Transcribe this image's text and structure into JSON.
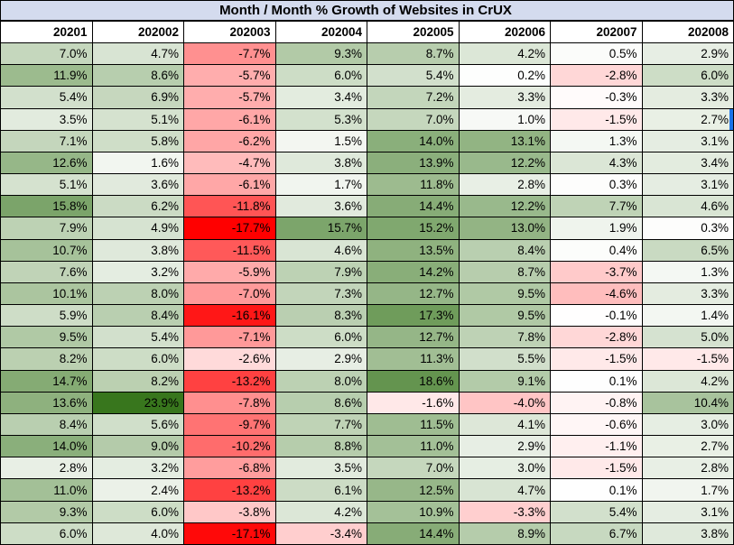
{
  "title": "Month / Month % Growth of Websites in CrUX",
  "colors": {
    "title_bg": "#d4dbee",
    "grid_border": "#000000",
    "header_bg": "#ffffff",
    "positive_max_color": "#38761d",
    "negative_max_color": "#ff0000",
    "midpoint_color": "#ffffff",
    "selection_color": "#1a73e8",
    "text_color": "#000000"
  },
  "selection": {
    "row": 4,
    "col": 8
  },
  "chart_data": {
    "type": "heatmap",
    "title": "Month / Month % Growth of Websites in CrUX",
    "unit": "%",
    "legend_position": "none",
    "grid": true,
    "columns": [
      "20201",
      "202002",
      "202003",
      "202004",
      "202005",
      "202006",
      "202007",
      "202008"
    ],
    "color_scale": {
      "min_value": -17.7,
      "mid_value": 0,
      "max_value": 23.9
    },
    "rows": [
      [
        7.0,
        4.7,
        -7.7,
        9.3,
        8.7,
        4.2,
        0.5,
        2.9
      ],
      [
        11.9,
        8.6,
        -5.7,
        6.0,
        5.4,
        0.2,
        -2.8,
        6.0
      ],
      [
        5.4,
        6.9,
        -5.7,
        3.4,
        7.2,
        3.3,
        -0.3,
        3.3
      ],
      [
        3.5,
        5.1,
        -6.1,
        5.3,
        7.0,
        1.0,
        -1.5,
        2.7
      ],
      [
        7.1,
        5.8,
        -6.2,
        1.5,
        14.0,
        13.1,
        1.3,
        3.1
      ],
      [
        12.6,
        1.6,
        -4.7,
        3.8,
        13.9,
        12.2,
        4.3,
        3.4
      ],
      [
        5.1,
        3.6,
        -6.1,
        1.7,
        11.8,
        2.8,
        0.3,
        3.1
      ],
      [
        15.8,
        6.2,
        -11.8,
        3.6,
        14.4,
        12.2,
        7.7,
        4.6
      ],
      [
        7.9,
        4.9,
        -17.7,
        15.7,
        15.2,
        13.0,
        1.9,
        0.3
      ],
      [
        10.7,
        3.8,
        -11.5,
        4.6,
        13.5,
        8.4,
        0.4,
        6.5
      ],
      [
        7.6,
        3.2,
        -5.9,
        7.9,
        14.2,
        8.7,
        -3.7,
        1.3
      ],
      [
        10.1,
        8.0,
        -7.0,
        7.3,
        12.7,
        9.5,
        -4.6,
        3.3
      ],
      [
        5.9,
        8.4,
        -16.1,
        8.3,
        17.3,
        9.5,
        -0.1,
        1.4
      ],
      [
        9.5,
        5.4,
        -7.1,
        6.0,
        12.7,
        7.8,
        -2.8,
        5.0
      ],
      [
        8.2,
        6.0,
        -2.6,
        2.9,
        11.3,
        5.5,
        -1.5,
        -1.5
      ],
      [
        14.7,
        8.2,
        -13.2,
        8.0,
        18.6,
        9.1,
        0.1,
        4.2
      ],
      [
        13.6,
        23.9,
        -7.8,
        8.6,
        -1.6,
        -4.0,
        -0.8,
        10.4
      ],
      [
        8.4,
        5.6,
        -9.7,
        7.7,
        11.5,
        4.1,
        -0.6,
        3.0
      ],
      [
        14.0,
        9.0,
        -10.2,
        8.8,
        11.0,
        2.9,
        -1.1,
        2.7
      ],
      [
        2.8,
        3.2,
        -6.8,
        3.5,
        7.0,
        3.0,
        -1.5,
        2.8
      ],
      [
        11.0,
        2.4,
        -13.2,
        6.1,
        12.5,
        4.7,
        0.1,
        1.7
      ],
      [
        9.3,
        6.0,
        -3.8,
        4.2,
        10.9,
        -3.3,
        5.4,
        3.1
      ],
      [
        6.0,
        4.0,
        -17.1,
        -3.4,
        14.4,
        8.9,
        6.7,
        3.8
      ]
    ]
  }
}
